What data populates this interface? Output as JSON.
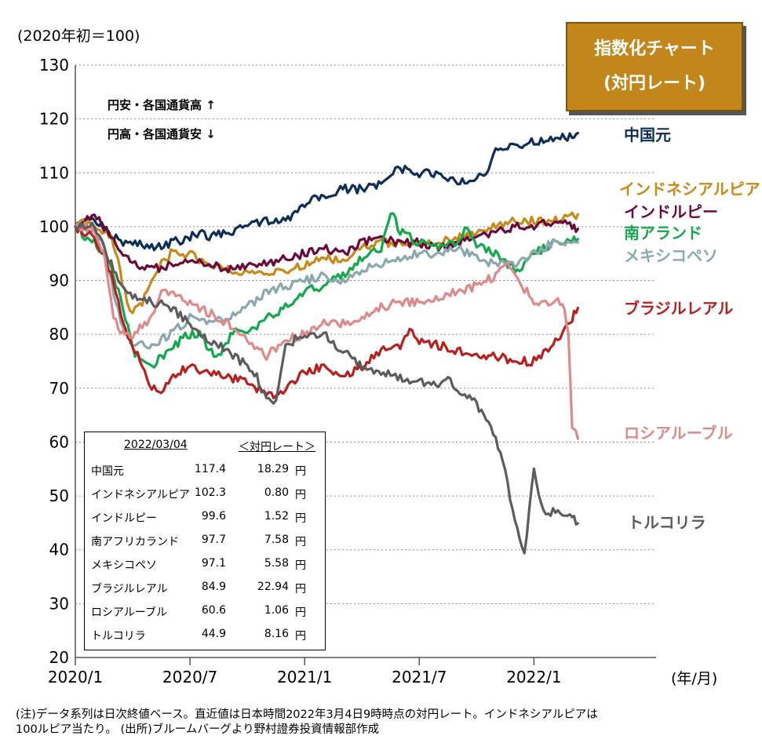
{
  "badge": {
    "line1": "指数化チャート",
    "line2": "(対円レート)"
  },
  "annotation": {
    "line1": "円安・各国通貨高 ↑",
    "line2": "円高・各国通貨安 ↓"
  },
  "unit_label": "(2020年初＝100)",
  "x_unit_label": "(年/月)",
  "colors": {
    "cny": "#0f2e57",
    "idr": "#c78a18",
    "inr": "#6b0a3a",
    "zar": "#13a84b",
    "mxn": "#8aa8ad",
    "brl": "#b81f1f",
    "rub": "#de8a8a",
    "try": "#5c5c5c"
  },
  "chart_data": {
    "type": "line",
    "title": "指数化チャート (対円レート)",
    "xlabel": "(年/月)",
    "ylabel": "(2020年初＝100)",
    "ylim": [
      20,
      130
    ],
    "xlim": [
      0,
      27
    ],
    "grid": "horizontal dotted",
    "yticks": [
      20,
      30,
      40,
      50,
      60,
      70,
      80,
      90,
      100,
      110,
      120,
      130
    ],
    "xticks": [
      {
        "pos": 0,
        "label": "2020/1"
      },
      {
        "pos": 6,
        "label": "2020/7"
      },
      {
        "pos": 12,
        "label": "2021/1"
      },
      {
        "pos": 18,
        "label": "2021/7"
      },
      {
        "pos": 24,
        "label": "2022/1"
      }
    ],
    "series": [
      {
        "key": "cny",
        "name": "中国元",
        "color": "#0f2e57",
        "points": [
          [
            0,
            100
          ],
          [
            0.5,
            102
          ],
          [
            1,
            101
          ],
          [
            1.5,
            100
          ],
          [
            2,
            98
          ],
          [
            2.5,
            97
          ],
          [
            3,
            97
          ],
          [
            4,
            96
          ],
          [
            5,
            97
          ],
          [
            6,
            98
          ],
          [
            6.5,
            99
          ],
          [
            7,
            98
          ],
          [
            8,
            99
          ],
          [
            9,
            100
          ],
          [
            10,
            101
          ],
          [
            11,
            101
          ],
          [
            12,
            104
          ],
          [
            13,
            106
          ],
          [
            14,
            107
          ],
          [
            15,
            107
          ],
          [
            16,
            108
          ],
          [
            17,
            111
          ],
          [
            17.5,
            110
          ],
          [
            18,
            110
          ],
          [
            19,
            110
          ],
          [
            20,
            108
          ],
          [
            21,
            109
          ],
          [
            21.5,
            109
          ],
          [
            22,
            114
          ],
          [
            23,
            115
          ],
          [
            24,
            116
          ],
          [
            25,
            116
          ],
          [
            26,
            117
          ],
          [
            26.3,
            117.4
          ]
        ]
      },
      {
        "key": "idr",
        "name": "インドネシアルピア",
        "color": "#c78a18",
        "points": [
          [
            0,
            100
          ],
          [
            0.7,
            101
          ],
          [
            1.3,
            100
          ],
          [
            2,
            97
          ],
          [
            2.7,
            86
          ],
          [
            3,
            84
          ],
          [
            3.5,
            86
          ],
          [
            4,
            90
          ],
          [
            4.5,
            93
          ],
          [
            5,
            95
          ],
          [
            5.5,
            95
          ],
          [
            6,
            95
          ],
          [
            7,
            93
          ],
          [
            8,
            92
          ],
          [
            9,
            91
          ],
          [
            10,
            91
          ],
          [
            11,
            92
          ],
          [
            12,
            93
          ],
          [
            13,
            94
          ],
          [
            14,
            94
          ],
          [
            15,
            96
          ],
          [
            16,
            97
          ],
          [
            17,
            97
          ],
          [
            18,
            97
          ],
          [
            19,
            97
          ],
          [
            20,
            98
          ],
          [
            21,
            99
          ],
          [
            22,
            100
          ],
          [
            23,
            101
          ],
          [
            24,
            101
          ],
          [
            25,
            101
          ],
          [
            26,
            102
          ],
          [
            26.3,
            102.3
          ]
        ]
      },
      {
        "key": "inr",
        "name": "インドルピー",
        "color": "#6b0a3a",
        "points": [
          [
            0,
            100
          ],
          [
            0.5,
            101
          ],
          [
            1,
            102
          ],
          [
            1.5,
            100
          ],
          [
            2,
            98
          ],
          [
            2.5,
            95
          ],
          [
            3,
            93
          ],
          [
            4,
            92
          ],
          [
            5,
            93
          ],
          [
            6,
            94
          ],
          [
            7,
            93
          ],
          [
            8,
            92
          ],
          [
            9,
            93
          ],
          [
            10,
            93
          ],
          [
            11,
            94
          ],
          [
            12,
            95
          ],
          [
            13,
            96
          ],
          [
            14,
            95
          ],
          [
            15,
            97
          ],
          [
            16,
            98
          ],
          [
            17,
            97
          ],
          [
            18,
            97
          ],
          [
            19,
            96
          ],
          [
            20,
            97
          ],
          [
            21,
            98
          ],
          [
            22,
            99
          ],
          [
            23,
            100
          ],
          [
            24,
            100
          ],
          [
            25,
            101
          ],
          [
            26,
            100
          ],
          [
            26.3,
            99.6
          ]
        ]
      },
      {
        "key": "zar",
        "name": "南アフリカランド",
        "color": "#13a84b",
        "points": [
          [
            0,
            100
          ],
          [
            0.5,
            98
          ],
          [
            1,
            97
          ],
          [
            1.5,
            95
          ],
          [
            2,
            91
          ],
          [
            2.5,
            85
          ],
          [
            3,
            77
          ],
          [
            3.5,
            75
          ],
          [
            4,
            74
          ],
          [
            4.5,
            76
          ],
          [
            5,
            77
          ],
          [
            5.5,
            79
          ],
          [
            6,
            80
          ],
          [
            6.5,
            80
          ],
          [
            7,
            77
          ],
          [
            7.5,
            76
          ],
          [
            8,
            79
          ],
          [
            8.5,
            81
          ],
          [
            9,
            80
          ],
          [
            10,
            83
          ],
          [
            11,
            85
          ],
          [
            12,
            88
          ],
          [
            13,
            89
          ],
          [
            14,
            91
          ],
          [
            15,
            94
          ],
          [
            15.5,
            95
          ],
          [
            16,
            96
          ],
          [
            16.5,
            103
          ],
          [
            17,
            99
          ],
          [
            18,
            97
          ],
          [
            19,
            96
          ],
          [
            20,
            97
          ],
          [
            20.5,
            100
          ],
          [
            21,
            96
          ],
          [
            21.5,
            96
          ],
          [
            22,
            95
          ],
          [
            23,
            92
          ],
          [
            23.5,
            93
          ],
          [
            24,
            95
          ],
          [
            25,
            97
          ],
          [
            26,
            98
          ],
          [
            26.3,
            97.7
          ]
        ]
      },
      {
        "key": "mxn",
        "name": "メキシコペソ",
        "color": "#8aa8ad",
        "points": [
          [
            0,
            100
          ],
          [
            0.5,
            100
          ],
          [
            1,
            99
          ],
          [
            1.5,
            96
          ],
          [
            2,
            88
          ],
          [
            2.5,
            81
          ],
          [
            3,
            78
          ],
          [
            4,
            78
          ],
          [
            5,
            80
          ],
          [
            6,
            83
          ],
          [
            7,
            82
          ],
          [
            8,
            83
          ],
          [
            9,
            85
          ],
          [
            10,
            88
          ],
          [
            11,
            89
          ],
          [
            12,
            90
          ],
          [
            13,
            91
          ],
          [
            14,
            90
          ],
          [
            15,
            92
          ],
          [
            16,
            93
          ],
          [
            17,
            94
          ],
          [
            18,
            95
          ],
          [
            19,
            95
          ],
          [
            20,
            96
          ],
          [
            21,
            94
          ],
          [
            22,
            93
          ],
          [
            23,
            93
          ],
          [
            24,
            95
          ],
          [
            25,
            97
          ],
          [
            26,
            97
          ],
          [
            26.3,
            97.1
          ]
        ]
      },
      {
        "key": "brl",
        "name": "ブラジルレアル",
        "color": "#b81f1f",
        "points": [
          [
            0,
            100
          ],
          [
            0.5,
            99
          ],
          [
            1,
            98
          ],
          [
            1.5,
            95
          ],
          [
            2,
            90
          ],
          [
            2.5,
            82
          ],
          [
            3,
            78
          ],
          [
            3.5,
            74
          ],
          [
            4,
            70
          ],
          [
            4.5,
            69
          ],
          [
            5,
            72
          ],
          [
            6,
            74
          ],
          [
            7,
            73
          ],
          [
            8,
            72
          ],
          [
            9,
            71
          ],
          [
            10,
            69
          ],
          [
            10.5,
            68
          ],
          [
            11,
            70
          ],
          [
            12,
            73
          ],
          [
            13,
            74
          ],
          [
            14,
            72
          ],
          [
            15,
            74
          ],
          [
            16,
            77
          ],
          [
            17,
            78
          ],
          [
            17.5,
            81
          ],
          [
            18,
            79
          ],
          [
            19,
            78
          ],
          [
            20,
            77
          ],
          [
            21,
            76
          ],
          [
            22,
            76
          ],
          [
            23,
            75
          ],
          [
            24,
            75
          ],
          [
            25,
            78
          ],
          [
            25.5,
            80
          ],
          [
            26,
            83
          ],
          [
            26.3,
            84.9
          ]
        ]
      },
      {
        "key": "rub",
        "name": "ロシアルーブル",
        "color": "#de8a8a",
        "points": [
          [
            0,
            100
          ],
          [
            0.5,
            100
          ],
          [
            1,
            99
          ],
          [
            1.5,
            95
          ],
          [
            2,
            83
          ],
          [
            2.5,
            80
          ],
          [
            3,
            80
          ],
          [
            4,
            83
          ],
          [
            4.5,
            88
          ],
          [
            5,
            88
          ],
          [
            6,
            86
          ],
          [
            7,
            84
          ],
          [
            8,
            82
          ],
          [
            9,
            79
          ],
          [
            10,
            76
          ],
          [
            11,
            79
          ],
          [
            12,
            80
          ],
          [
            13,
            82
          ],
          [
            14,
            82
          ],
          [
            15,
            83
          ],
          [
            16,
            85
          ],
          [
            17,
            86
          ],
          [
            18,
            86
          ],
          [
            19,
            87
          ],
          [
            20,
            88
          ],
          [
            21,
            89
          ],
          [
            22,
            91
          ],
          [
            22.5,
            93
          ],
          [
            23,
            91
          ],
          [
            24,
            86
          ],
          [
            25,
            86
          ],
          [
            25.5,
            86
          ],
          [
            25.8,
            81
          ],
          [
            26,
            63
          ],
          [
            26.3,
            60.6
          ]
        ]
      },
      {
        "key": "try",
        "name": "トルコリラ",
        "color": "#5c5c5c",
        "points": [
          [
            0,
            100
          ],
          [
            0.5,
            100
          ],
          [
            1,
            100
          ],
          [
            1.5,
            96
          ],
          [
            2,
            92
          ],
          [
            2.5,
            89
          ],
          [
            3,
            87
          ],
          [
            4,
            86
          ],
          [
            5,
            85
          ],
          [
            6,
            82
          ],
          [
            7,
            79
          ],
          [
            8,
            77
          ],
          [
            9,
            74
          ],
          [
            9.5,
            72
          ],
          [
            10,
            68
          ],
          [
            10.5,
            67
          ],
          [
            11,
            78
          ],
          [
            12,
            80
          ],
          [
            13,
            80
          ],
          [
            14,
            77
          ],
          [
            15,
            74
          ],
          [
            16,
            73
          ],
          [
            17,
            72
          ],
          [
            18,
            71
          ],
          [
            19,
            71
          ],
          [
            19.5,
            72
          ],
          [
            20,
            70
          ],
          [
            21,
            67
          ],
          [
            22,
            61
          ],
          [
            22.5,
            54
          ],
          [
            23,
            45
          ],
          [
            23.5,
            39
          ],
          [
            24,
            55
          ],
          [
            24.5,
            47
          ],
          [
            25,
            47
          ],
          [
            26,
            46
          ],
          [
            26.3,
            44.9
          ]
        ]
      }
    ]
  },
  "series_labels": [
    {
      "key": "cny",
      "text": "中国元",
      "color": "#0f2e57"
    },
    {
      "key": "idr",
      "text": "インドネシアルピア",
      "color": "#c78a18"
    },
    {
      "key": "inr",
      "text": "インドルピー",
      "color": "#6b0a3a"
    },
    {
      "key": "zar",
      "text": "南アランド",
      "color": "#13a84b"
    },
    {
      "key": "mxn",
      "text": "メキシコペソ",
      "color": "#8aa8ad"
    },
    {
      "key": "brl",
      "text": "ブラジルレアル",
      "color": "#b81f1f"
    },
    {
      "key": "rub",
      "text": "ロシアルーブル",
      "color": "#de8a8a"
    },
    {
      "key": "try",
      "text": "トルコリラ",
      "color": "#5c5c5c"
    }
  ],
  "table": {
    "date_header": "2022/03/04",
    "rate_header": "＜対円レート＞",
    "rows": [
      {
        "name": "中国元",
        "index": "117.4",
        "rate": "18.29",
        "unit": "円"
      },
      {
        "name": "インドネシアルピア",
        "index": "102.3",
        "rate": "0.80",
        "unit": "円"
      },
      {
        "name": "インドルピー",
        "index": "99.6",
        "rate": "1.52",
        "unit": "円"
      },
      {
        "name": "南アフリカランド",
        "index": "97.7",
        "rate": "7.58",
        "unit": "円"
      },
      {
        "name": "メキシコペソ",
        "index": "97.1",
        "rate": "5.58",
        "unit": "円"
      },
      {
        "name": "ブラジルレアル",
        "index": "84.9",
        "rate": "22.94",
        "unit": "円"
      },
      {
        "name": "ロシアルーブル",
        "index": "60.6",
        "rate": "1.06",
        "unit": "円"
      },
      {
        "name": "トルコリラ",
        "index": "44.9",
        "rate": "8.16",
        "unit": "円"
      }
    ]
  },
  "notes": {
    "line1": "(注)データ系列は日次終値ベース。直近値は日本時間2022年3月4日9時時点の対円レート。インドネシアルピアは",
    "line2": "100ルピア当たり。 (出所)ブルームバーグより野村證券投資情報部作成"
  }
}
